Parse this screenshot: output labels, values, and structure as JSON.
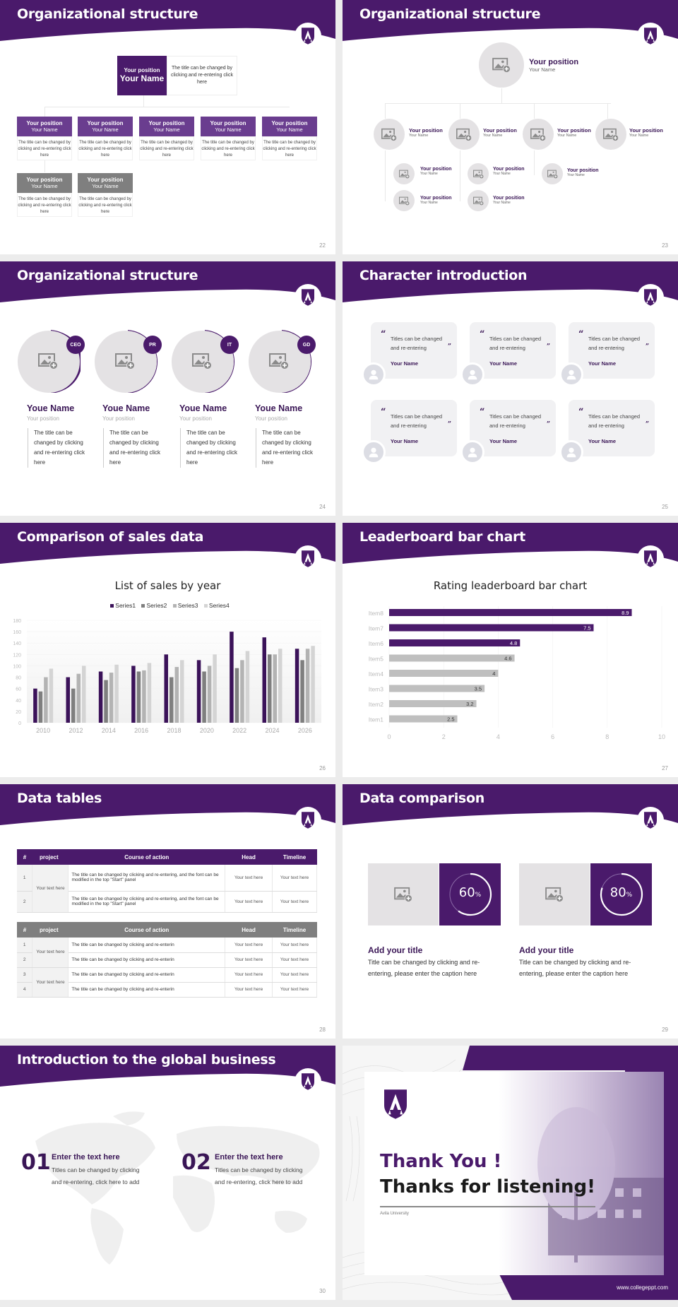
{
  "colors": {
    "brand_purple": "#4a1a6b",
    "box_purple": "#6a3d8f",
    "gray_box": "#7f7f7f",
    "light_gray": "#e4e2e4"
  },
  "slides": {
    "s22": {
      "title": "Organizational structure",
      "page": "22",
      "top": {
        "position": "Your position",
        "name": "Your Name",
        "desc": "The title can be changed by clicking and re-entering click here"
      },
      "row1": [
        {
          "position": "Your position",
          "name": "Your Name",
          "desc": "The title can be changed by clicking and re-entering click here"
        },
        {
          "position": "Your position",
          "name": "Your Name",
          "desc": "The title can be changed by clicking and re-entering click here"
        },
        {
          "position": "Your position",
          "name": "Your Name",
          "desc": "The title can be changed by clicking and re-entering click here"
        },
        {
          "position": "Your position",
          "name": "Your Name",
          "desc": "The title can be changed by clicking and re-entering click here"
        },
        {
          "position": "Your position",
          "name": "Your Name",
          "desc": "The title can be changed by clicking and re-entering click here"
        }
      ],
      "row2": [
        {
          "position": "Your position",
          "name": "Your Name",
          "desc": "The title can be changed by clicking and re-entering click here"
        },
        {
          "position": "Your position",
          "name": "Your Name",
          "desc": "The title can be changed by clicking and re-entering click here"
        }
      ]
    },
    "s23": {
      "title": "Organizational structure",
      "page": "23",
      "top": {
        "position": "Your position",
        "name": "Your Name"
      },
      "level2": [
        {
          "position": "Your position",
          "name": "Your Name"
        },
        {
          "position": "Your position",
          "name": "Your Name"
        },
        {
          "position": "Your position",
          "name": "Your Name"
        },
        {
          "position": "Your position",
          "name": "Your Name"
        }
      ],
      "level3": [
        {
          "position": "Your position",
          "name": "Your Name"
        },
        {
          "position": "Your position",
          "name": "Your Name"
        },
        {
          "position": "Your position",
          "name": "Your Name"
        },
        {
          "position": "Your position",
          "name": "Your Name"
        },
        {
          "position": "Your position",
          "name": "Your Name"
        }
      ]
    },
    "s24": {
      "title": "Organizational structure",
      "page": "24",
      "people": [
        {
          "badge": "CEO",
          "name": "Youe Name",
          "position": "Your position",
          "desc": "The title can be changed by clicking and re-entering click here"
        },
        {
          "badge": "PR",
          "name": "Youe Name",
          "position": "Your position",
          "desc": "The title can be changed by clicking and re-entering click here"
        },
        {
          "badge": "IT",
          "name": "Youe Name",
          "position": "Your position",
          "desc": "The title can be changed by clicking and re-entering click here"
        },
        {
          "badge": "GD",
          "name": "Youe Name",
          "position": "Your position",
          "desc": "The title can be changed by clicking and re-entering click here"
        }
      ]
    },
    "s25": {
      "title": "Character introduction",
      "page": "25",
      "cards": [
        {
          "text": "Titles can be changed and re-entering",
          "name": "Your Name"
        },
        {
          "text": "Titles can be changed and re-entering",
          "name": "Your Name"
        },
        {
          "text": "Titles can be changed and re-entering",
          "name": "Your Name"
        },
        {
          "text": "Titles can be changed and re-entering",
          "name": "Your Name"
        },
        {
          "text": "Titles can be changed and re-entering",
          "name": "Your Name"
        },
        {
          "text": "Titles can be changed and re-entering",
          "name": "Your Name"
        }
      ]
    },
    "s26": {
      "title": "Comparison of sales data",
      "page": "26"
    },
    "s27": {
      "title": "Leaderboard bar chart",
      "page": "27"
    },
    "s28": {
      "title": "Data tables",
      "page": "28",
      "headers": [
        "#",
        "project",
        "Course of action",
        "Head",
        "Timeline"
      ],
      "table1": {
        "project": "Your text here",
        "rows": [
          {
            "idx": "1",
            "action": "The title can be changed by clicking and re-entering, and the font can be modified in the top \"Start\" panel",
            "head": "Your text here",
            "timeline": "Your text here"
          },
          {
            "idx": "2",
            "action": "The title can be changed by clicking and re-entering, and the font can be modified in the top \"Start\" panel",
            "head": "Your text here",
            "timeline": "Your text here"
          }
        ]
      },
      "table2": {
        "projects": [
          "Your text here",
          "Your text here"
        ],
        "rows": [
          {
            "idx": "1",
            "action": "The title can be changed by clicking and re-enterin",
            "head": "Your text here",
            "timeline": "Your text here"
          },
          {
            "idx": "2",
            "action": "The title can be changed by clicking and re-enterin",
            "head": "Your text here",
            "timeline": "Your text here"
          },
          {
            "idx": "3",
            "action": "The title can be changed by clicking and re-enterin",
            "head": "Your text here",
            "timeline": "Your text here"
          },
          {
            "idx": "4",
            "action": "The title can be changed by clicking and re-enterin",
            "head": "Your text here",
            "timeline": "Your text here"
          }
        ]
      }
    },
    "s29": {
      "title": "Data comparison",
      "page": "29",
      "items": [
        {
          "percent": "60",
          "unit": "%",
          "title": "Add your title",
          "text": "Title can be changed by clicking and re-entering, please enter the caption here"
        },
        {
          "percent": "80",
          "unit": "%",
          "title": "Add your title",
          "text": "Title can be changed by clicking and re-entering, please enter the caption here"
        }
      ]
    },
    "s30": {
      "title": "Introduction to the global business",
      "page": "30",
      "items": [
        {
          "num": "01",
          "heading": "Enter the text here",
          "text": "Titles can be changed by clicking and re-entering, click here to add"
        },
        {
          "num": "02",
          "heading": "Enter the text here",
          "text": "Titles can be changed by clicking and re-entering, click here to add"
        }
      ]
    },
    "s31": {
      "line1": "Thank You !",
      "line2": "Thanks for listening!",
      "university": "Avila University",
      "website": "www.collegeppt.com"
    }
  },
  "chart_data": [
    {
      "type": "bar",
      "title": "List of sales by year",
      "categories": [
        "2010",
        "2012",
        "2014",
        "2016",
        "2018",
        "2020",
        "2022",
        "2024",
        "2026"
      ],
      "series": [
        {
          "name": "Series1",
          "color": "#3b1259",
          "values": [
            60,
            80,
            90,
            100,
            120,
            110,
            160,
            150,
            130
          ]
        },
        {
          "name": "Series2",
          "color": "#7f7f7f",
          "values": [
            55,
            60,
            75,
            90,
            80,
            90,
            96,
            120,
            110
          ]
        },
        {
          "name": "Series3",
          "color": "#b3b3b3",
          "values": [
            80,
            86,
            88,
            92,
            98,
            100,
            110,
            120,
            130
          ]
        },
        {
          "name": "Series4",
          "color": "#d4d4d4",
          "values": [
            95,
            100,
            102,
            105,
            110,
            120,
            126,
            130,
            135
          ]
        }
      ],
      "yticks": [
        "0",
        "20",
        "40",
        "60",
        "80",
        "100",
        "120",
        "140",
        "160",
        "180"
      ],
      "ylim": [
        0,
        180
      ],
      "xlabel": "",
      "ylabel": "",
      "legend_position": "top"
    },
    {
      "type": "bar",
      "orientation": "horizontal",
      "title": "Rating leaderboard bar chart",
      "categories": [
        "Item8",
        "Item7",
        "Item6",
        "Item5",
        "Item4",
        "Item3",
        "Item2",
        "Item1"
      ],
      "values": [
        8.9,
        7.5,
        4.8,
        4.6,
        4,
        3.5,
        3.2,
        2.5
      ],
      "labels": [
        "8.9",
        "7.5",
        "4.8",
        "4.6",
        "4",
        "3.5",
        "3.2",
        "2.5"
      ],
      "colors": [
        "#4a1a6b",
        "#4a1a6b",
        "#4a1a6b",
        "#bfbfbf",
        "#bfbfbf",
        "#bfbfbf",
        "#bfbfbf",
        "#bfbfbf"
      ],
      "xticks": [
        "0",
        "2",
        "4",
        "6",
        "8",
        "10"
      ],
      "xlim": [
        0,
        10
      ],
      "grid": true
    }
  ]
}
